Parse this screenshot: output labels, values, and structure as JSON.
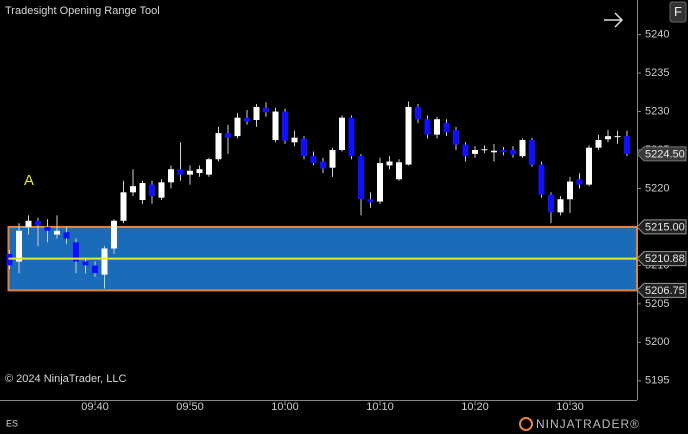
{
  "chart_data": {
    "type": "candlestick",
    "title": "Tradesight Opening Range Tool",
    "annotation": "A",
    "copyright": "© 2024 NinjaTrader, LLC",
    "instrument": "ES",
    "logo": "NINJATRADER®",
    "button": "F",
    "x": [
      "09:31",
      "09:32",
      "09:33",
      "09:34",
      "09:35",
      "09:36",
      "09:37",
      "09:38",
      "09:39",
      "09:40",
      "09:41",
      "09:42",
      "09:43",
      "09:44",
      "09:45",
      "09:46",
      "09:47",
      "09:48",
      "09:49",
      "09:50",
      "09:51",
      "09:52",
      "09:53",
      "09:54",
      "09:55",
      "09:56",
      "09:57",
      "09:58",
      "09:59",
      "10:00",
      "10:01",
      "10:02",
      "10:03",
      "10:04",
      "10:05",
      "10:06",
      "10:07",
      "10:08",
      "10:09",
      "10:10",
      "10:11",
      "10:12",
      "10:13",
      "10:14",
      "10:15",
      "10:16",
      "10:17",
      "10:18",
      "10:19",
      "10:20",
      "10:21",
      "10:22",
      "10:23",
      "10:24",
      "10:25",
      "10:26",
      "10:27",
      "10:28",
      "10:29",
      "10:30",
      "10:31",
      "10:32",
      "10:33",
      "10:34",
      "10:35",
      "10:36"
    ],
    "series": [
      {
        "up_color": "#ffffff",
        "down_color": "#1010ff",
        "wick_color": "#d0d0d0",
        "open": [
          5211.5,
          5210.5,
          5215,
          5215.8,
          5215,
          5214,
          5214.3,
          5213,
          5210.5,
          5210,
          5208.8,
          5212.2,
          5215.8,
          5219.5,
          5218.5,
          5220.5,
          5218.8,
          5220.8,
          5222.5,
          5221.8,
          5222,
          5221.8,
          5223.8,
          5227.2,
          5226.8,
          5229.2,
          5228.9,
          5230.5,
          5226.3,
          5230,
          5226,
          5226.5,
          5224.2,
          5223.5,
          5222.7,
          5225,
          5229.2,
          5224.2,
          5218.6,
          5218.3,
          5223,
          5221.2,
          5223.1,
          5230.6,
          5229,
          5227,
          5228.5,
          5227.6,
          5225.7,
          5224.5,
          5225,
          5224.7,
          5225,
          5225,
          5224.2,
          5226.3,
          5223.1,
          5219.2,
          5216.9,
          5218.6,
          5221.2,
          5220.5,
          5225.3,
          5226.4,
          5226.7,
          5226.8
        ],
        "high": [
          5212,
          5215.5,
          5216.5,
          5216.2,
          5216,
          5216.5,
          5215,
          5213.5,
          5211,
          5210.5,
          5212.5,
          5216,
          5221,
          5222.5,
          5221,
          5221,
          5221.2,
          5223,
          5226,
          5223,
          5223,
          5224,
          5228,
          5228.3,
          5229.8,
          5230.2,
          5231,
          5231.2,
          5230.5,
          5230.4,
          5227.5,
          5226.8,
          5224.8,
          5224,
          5225.3,
          5229.5,
          5229.5,
          5224.5,
          5219.5,
          5224,
          5224.2,
          5223.8,
          5231.3,
          5231,
          5229.5,
          5229.3,
          5229,
          5228,
          5226,
          5225.5,
          5225.6,
          5225.8,
          5225.4,
          5225.5,
          5226.5,
          5226.6,
          5223.5,
          5219.5,
          5219,
          5221.5,
          5222,
          5225.6,
          5227,
          5227.6,
          5227.5,
          5227.5
        ],
        "low": [
          5209.5,
          5209,
          5214,
          5212.5,
          5213,
          5213.5,
          5212.8,
          5209,
          5209,
          5208.5,
          5207,
          5211.5,
          5215.5,
          5219,
          5218,
          5218,
          5218.5,
          5220,
          5221,
          5220.5,
          5221.5,
          5221.5,
          5223.5,
          5224.5,
          5226.5,
          5228.3,
          5228,
          5229.3,
          5226,
          5225.8,
          5225.5,
          5223.8,
          5223,
          5222,
          5221.5,
          5224.8,
          5223.8,
          5216.5,
          5217.5,
          5218,
          5222.5,
          5221,
          5223,
          5228.5,
          5226.5,
          5226.5,
          5226.8,
          5225,
          5223.5,
          5224,
          5224.6,
          5223.5,
          5224.3,
          5224,
          5224,
          5222.8,
          5218.8,
          5215.5,
          5216.5,
          5216.8,
          5220,
          5220.3,
          5225,
          5226,
          5225.8,
          5224.2
        ],
        "close": [
          5210,
          5214.5,
          5215.8,
          5215.2,
          5214.5,
          5214.5,
          5213.5,
          5210.5,
          5210,
          5209,
          5212.2,
          5215.8,
          5219.5,
          5220.3,
          5220.7,
          5219,
          5220.8,
          5222.5,
          5221.8,
          5222.3,
          5222.5,
          5223.8,
          5227.2,
          5226.6,
          5229.2,
          5228.7,
          5230.6,
          5229.9,
          5230,
          5226.2,
          5226.6,
          5224.2,
          5223.3,
          5222.6,
          5225,
          5229.2,
          5224.2,
          5218.6,
          5218.2,
          5223.3,
          5223.5,
          5223.4,
          5230.6,
          5229,
          5227,
          5229,
          5227.3,
          5225.7,
          5224.2,
          5225,
          5225.1,
          5224.9,
          5224.7,
          5224.4,
          5226.3,
          5223.1,
          5219.2,
          5216.9,
          5218.6,
          5220.9,
          5220.5,
          5225.3,
          5226.3,
          5226.8,
          5226.8,
          5224.5
        ]
      }
    ],
    "opening_range": {
      "high": {
        "value": 5215,
        "label": "5215.00"
      },
      "mid": {
        "value": 5210.88,
        "label": "5210.88"
      },
      "low": {
        "value": 5206.75,
        "label": "5206.75"
      },
      "fill": "#1b6cb8",
      "border_color": "#e8833a",
      "mid_color": "#e6e63c"
    },
    "last_price": {
      "value": 5224.5,
      "label": "5224.50"
    },
    "ylim": [
      5192.5,
      5244.5
    ],
    "yticks": [
      5195,
      5200,
      5205,
      5210,
      5215,
      5220,
      5225,
      5230,
      5235,
      5240
    ],
    "xticks": [
      "09:40",
      "09:50",
      "10:00",
      "10:10",
      "10:20",
      "10:30"
    ],
    "grid": false
  }
}
